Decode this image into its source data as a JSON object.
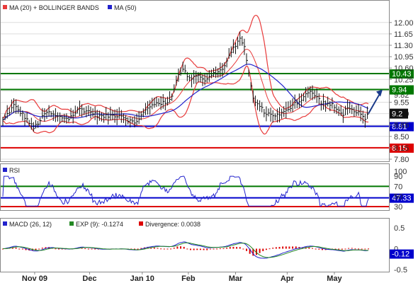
{
  "chart_data": [
    {
      "type": "line",
      "name": "price",
      "legend": {
        "ma20": "MA (20) + BOLLINGER BANDS",
        "ma50": "MA (50)"
      },
      "ylim": [
        7.8,
        12.3
      ],
      "y_ticks": [
        "12.00",
        "11.65",
        "11.30",
        "10.95",
        "10.60",
        "10.25",
        "9.90",
        "9.55",
        "9.20",
        "8.85",
        "8.50",
        "8.15",
        "7.80"
      ],
      "levels": [
        {
          "value": 10.43,
          "label": "10.43",
          "color": "#007700"
        },
        {
          "value": 9.94,
          "label": "9.94",
          "color": "#007700"
        },
        {
          "value": 8.81,
          "label": "8.81",
          "color": "#0000cc"
        },
        {
          "value": 8.15,
          "label": "8.15",
          "color": "#dd0000"
        }
      ],
      "last_price": {
        "value": 9.2,
        "label": "9.2"
      },
      "hidden_label": "9.82",
      "projection_to": 9.94,
      "x_months": [
        "Nov 09",
        "Dec",
        "Jan 10",
        "Feb",
        "Mar",
        "Apr",
        "May"
      ],
      "price_keypoints": [
        [
          0,
          9.0
        ],
        [
          10,
          9.45
        ],
        [
          20,
          9.1
        ],
        [
          28,
          8.75
        ],
        [
          40,
          9.25
        ],
        [
          50,
          9.1
        ],
        [
          60,
          9.05
        ],
        [
          70,
          9.35
        ],
        [
          80,
          9.25
        ],
        [
          90,
          9.1
        ],
        [
          100,
          9.15
        ],
        [
          108,
          9.15
        ],
        [
          115,
          9.0
        ],
        [
          120,
          8.9
        ],
        [
          130,
          9.3
        ],
        [
          140,
          9.55
        ],
        [
          150,
          9.5
        ],
        [
          155,
          9.85
        ],
        [
          160,
          10.45
        ],
        [
          165,
          10.55
        ],
        [
          170,
          10.25
        ],
        [
          175,
          10.4
        ],
        [
          180,
          10.35
        ],
        [
          185,
          10.2
        ],
        [
          190,
          10.4
        ],
        [
          200,
          10.55
        ],
        [
          210,
          11.2
        ],
        [
          215,
          11.5
        ],
        [
          220,
          11.3
        ],
        [
          225,
          10.2
        ],
        [
          228,
          9.65
        ],
        [
          233,
          9.45
        ],
        [
          240,
          9.2
        ],
        [
          250,
          9.15
        ],
        [
          260,
          9.3
        ],
        [
          265,
          9.55
        ],
        [
          270,
          9.55
        ],
        [
          275,
          9.8
        ],
        [
          280,
          9.85
        ],
        [
          285,
          9.75
        ],
        [
          290,
          9.55
        ],
        [
          300,
          9.45
        ],
        [
          305,
          9.3
        ],
        [
          310,
          9.2
        ],
        [
          315,
          9.45
        ],
        [
          320,
          9.2
        ],
        [
          325,
          9.2
        ],
        [
          330,
          9.0
        ],
        [
          333,
          9.2
        ]
      ],
      "x_count": 334,
      "month_index": [
        29,
        79,
        127,
        169,
        212,
        259,
        302
      ]
    },
    {
      "type": "line",
      "name": "rsi",
      "legend": "RSI",
      "ylim": [
        30,
        100
      ],
      "y_ticks": [
        "100",
        "90",
        "50",
        "30"
      ],
      "levels": [
        {
          "value": 70,
          "label": "70",
          "color": "#007700"
        },
        {
          "value": 47.33,
          "label": "47.33",
          "color": "#0000cc"
        },
        {
          "value": 30,
          "label": "30",
          "color": "#dd0000"
        }
      ],
      "current": 47.33
    },
    {
      "type": "bar",
      "name": "macd",
      "legend": {
        "macd": "MACD (26, 12)",
        "exp": "EXP (9): -0.1274",
        "div": "Divergence: 0.0038"
      },
      "ylim": [
        -0.5,
        0.5
      ],
      "y_ticks": [
        "0.5",
        "0",
        "-0.5"
      ],
      "current": {
        "value": -0.12,
        "label": "-0.12"
      }
    }
  ],
  "colors": {
    "band": "#e83a3a",
    "ma50": "#2222cc",
    "price": "#111111",
    "macd": "#2222cc",
    "exp": "#228822",
    "divergence": "#dd0000",
    "grid": "#dddddd",
    "projection": "#1a3a8a"
  }
}
